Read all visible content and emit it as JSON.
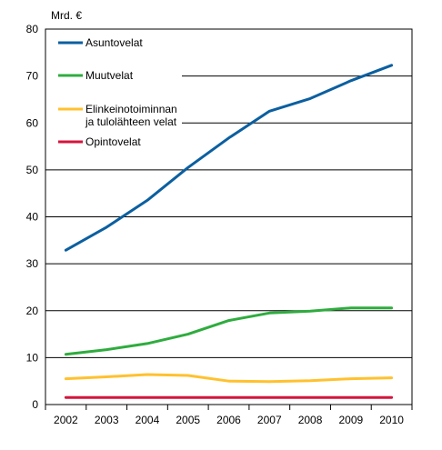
{
  "chart_data": {
    "type": "line",
    "unit_label": "Mrd. €",
    "x": [
      "2002",
      "2003",
      "2004",
      "2005",
      "2006",
      "2007",
      "2008",
      "2009",
      "2010"
    ],
    "ylim": [
      0,
      80
    ],
    "yticks": [
      "0",
      "10",
      "20",
      "30",
      "40",
      "50",
      "60",
      "70",
      "80"
    ],
    "grid": "horizontal",
    "legend_position": "top-left",
    "series": [
      {
        "name": "Asuntovelat",
        "color": "#0b5fa0",
        "values": [
          32.9,
          37.8,
          43.5,
          50.5,
          56.8,
          62.5,
          65.2,
          69.0,
          72.3
        ]
      },
      {
        "name": "Muutvelat",
        "color": "#2eac3e",
        "values": [
          10.7,
          11.7,
          13.0,
          15.0,
          17.9,
          19.5,
          19.9,
          20.6,
          20.6
        ]
      },
      {
        "name_lines": [
          "Elinkeinotoiminnan",
          "ja tulolähteen velat"
        ],
        "color": "#ffc12e",
        "values": [
          5.5,
          5.9,
          6.4,
          6.2,
          5.0,
          4.9,
          5.1,
          5.5,
          5.7
        ]
      },
      {
        "name": "Opintovelat",
        "color": "#d6143c",
        "values": [
          1.5,
          1.5,
          1.5,
          1.5,
          1.5,
          1.5,
          1.5,
          1.5,
          1.5
        ]
      }
    ]
  }
}
